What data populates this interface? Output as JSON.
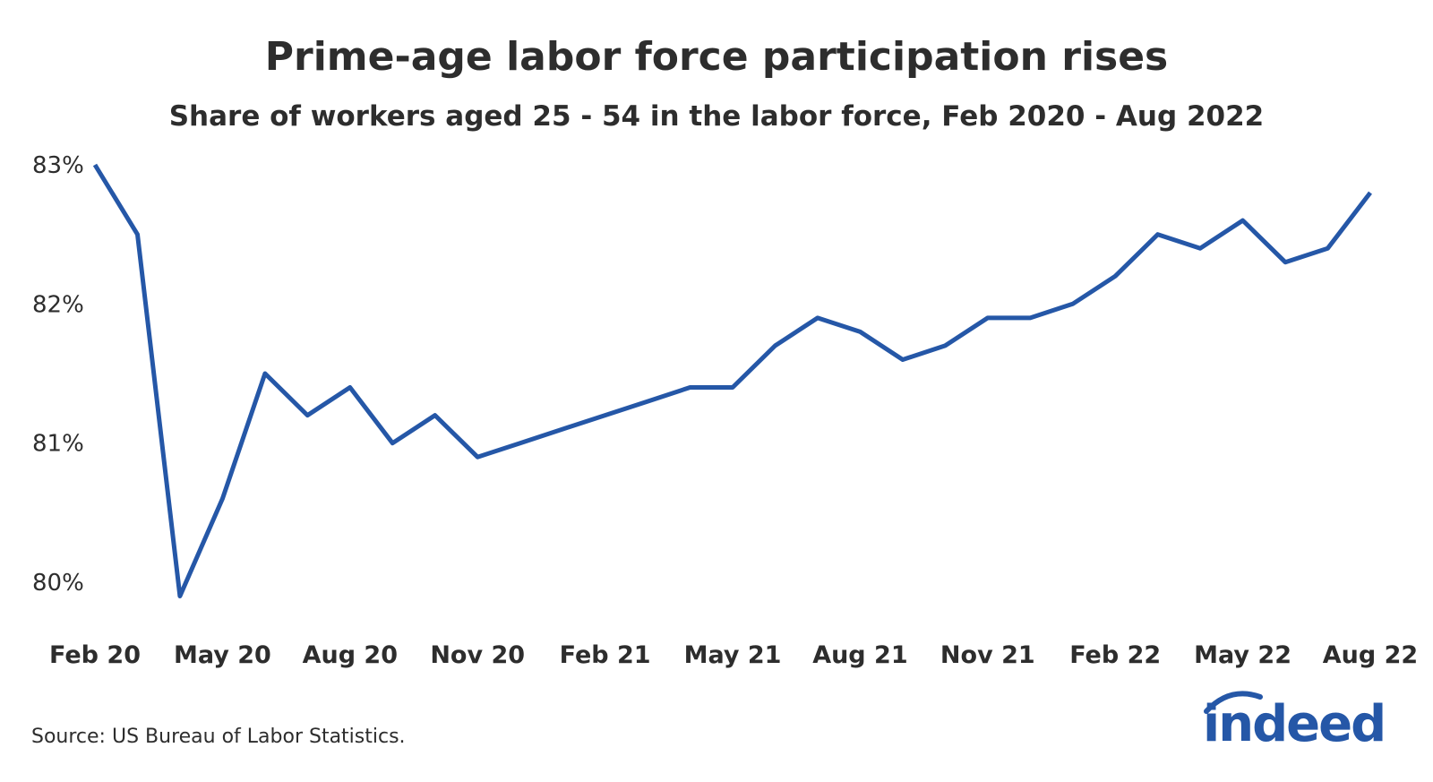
{
  "chart_data": {
    "type": "line",
    "title": "Prime-age labor force participation rises",
    "subtitle": "Share of workers aged 25 - 54 in the labor force, Feb 2020 - Aug 2022",
    "xlabel": "",
    "ylabel": "",
    "ylim": [
      80,
      83
    ],
    "y_ticks": [
      "80%",
      "81%",
      "82%",
      "83%"
    ],
    "y_tick_values": [
      80,
      81,
      82,
      83
    ],
    "x_tick_labels": [
      "Feb 20",
      "May 20",
      "Aug 20",
      "Nov 20",
      "Feb 21",
      "May 21",
      "Aug 21",
      "Nov 21",
      "Feb 22",
      "May 22",
      "Aug 22"
    ],
    "x": [
      "Feb 2020",
      "Mar 2020",
      "Apr 2020",
      "May 2020",
      "Jun 2020",
      "Jul 2020",
      "Aug 2020",
      "Sep 2020",
      "Oct 2020",
      "Nov 2020",
      "Dec 2020",
      "Jan 2021",
      "Feb 2021",
      "Mar 2021",
      "Apr 2021",
      "May 2021",
      "Jun 2021",
      "Jul 2021",
      "Aug 2021",
      "Sep 2021",
      "Oct 2021",
      "Nov 2021",
      "Dec 2021",
      "Jan 2022",
      "Feb 2022",
      "Mar 2022",
      "Apr 2022",
      "May 2022",
      "Jun 2022",
      "Jul 2022",
      "Aug 2022"
    ],
    "series": [
      {
        "values": [
          83.0,
          82.5,
          79.9,
          80.6,
          81.5,
          81.2,
          81.4,
          81.0,
          81.2,
          80.9,
          81.0,
          81.1,
          81.2,
          81.3,
          81.4,
          81.4,
          81.7,
          81.9,
          81.8,
          81.6,
          81.7,
          81.9,
          81.9,
          82.0,
          82.2,
          82.5,
          82.4,
          82.6,
          82.3,
          82.4,
          82.8
        ],
        "color": "#2557a7"
      }
    ],
    "grid": false,
    "legend": "none"
  },
  "source": "Source: US Bureau of Labor Statistics.",
  "logo": {
    "text": "indeed",
    "color": "#2557a7"
  }
}
